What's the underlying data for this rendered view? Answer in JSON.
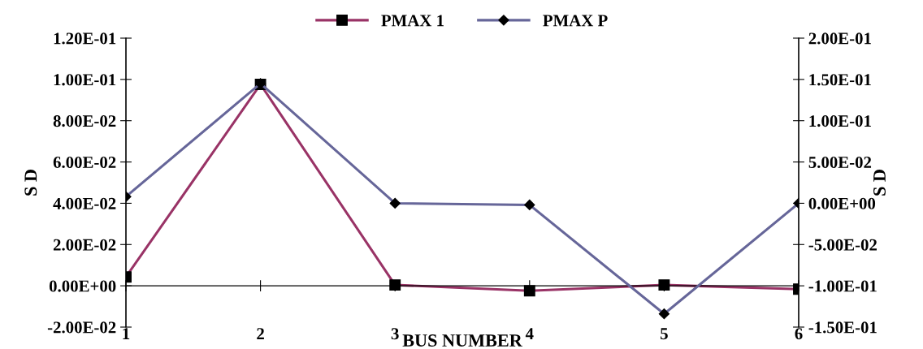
{
  "chart_data": {
    "type": "line",
    "xlabel": "BUS NUMBER",
    "ylabel": "S D",
    "y2label": "S D",
    "categories": [
      "1",
      "2",
      "3",
      "4",
      "5",
      "6"
    ],
    "series": [
      {
        "name": "PMAX 1",
        "color": "#993366",
        "marker": "square",
        "values": [
          0.0043,
          0.0976,
          0.0004,
          -0.0024,
          0.0004,
          -0.0016
        ]
      },
      {
        "name": "PMAX P",
        "color": "#666699",
        "marker": "diamond",
        "axis": "y2",
        "values": [
          0.008,
          0.145,
          0.0,
          -0.002,
          -0.134,
          0.0
        ]
      }
    ],
    "ylim": [
      -0.02,
      0.12
    ],
    "yticks": [
      {
        "value": -0.02,
        "label": "-2.00E-02"
      },
      {
        "value": 0,
        "label": "0.00E+00"
      },
      {
        "value": 0.02,
        "label": "2.00E-02"
      },
      {
        "value": 0.04,
        "label": "4.00E-02"
      },
      {
        "value": 0.06,
        "label": "6.00E-02"
      },
      {
        "value": 0.08,
        "label": "8.00E-02"
      },
      {
        "value": 0.1,
        "label": "1.00E-01"
      },
      {
        "value": 0.12,
        "label": "1.20E-01"
      }
    ],
    "y2lim": [
      -0.15,
      0.2
    ],
    "y2ticks": [
      {
        "value": -0.15,
        "label": "-1.50E-01"
      },
      {
        "value": -0.1,
        "label": "-1.00E-01"
      },
      {
        "value": -0.05,
        "label": "-5.00E-02"
      },
      {
        "value": 0,
        "label": "0.00E+00"
      },
      {
        "value": 0.05,
        "label": "5.00E-02"
      },
      {
        "value": 0.1,
        "label": "1.00E-01"
      },
      {
        "value": 0.15,
        "label": "1.50E-01"
      },
      {
        "value": 0.2,
        "label": "2.00E-01"
      }
    ],
    "grid": false,
    "legend": "top",
    "line_style": "solid"
  }
}
